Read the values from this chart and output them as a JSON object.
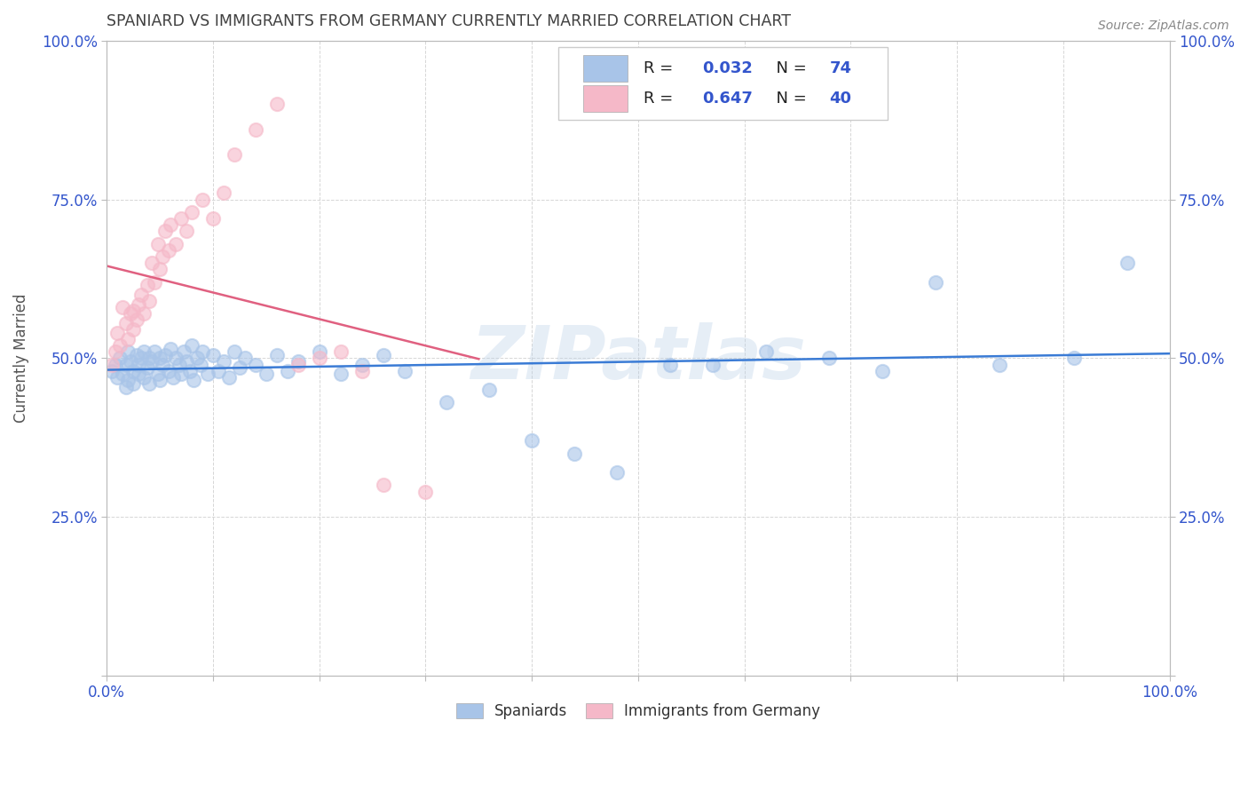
{
  "title": "SPANIARD VS IMMIGRANTS FROM GERMANY CURRENTLY MARRIED CORRELATION CHART",
  "source_text": "Source: ZipAtlas.com",
  "ylabel": "Currently Married",
  "watermark": "ZIPatlas",
  "xlim": [
    0.0,
    1.0
  ],
  "ylim": [
    0.0,
    1.0
  ],
  "xticks": [
    0.0,
    0.1,
    0.2,
    0.3,
    0.4,
    0.5,
    0.6,
    0.7,
    0.8,
    0.9,
    1.0
  ],
  "xticklabels": [
    "0.0%",
    "",
    "",
    "",
    "",
    "",
    "",
    "",
    "",
    "",
    "100.0%"
  ],
  "yticks": [
    0.0,
    0.25,
    0.5,
    0.75,
    1.0
  ],
  "yticklabels": [
    "",
    "25.0%",
    "50.0%",
    "75.0%",
    "100.0%"
  ],
  "blue_R": 0.032,
  "blue_N": 74,
  "pink_R": 0.647,
  "pink_N": 40,
  "blue_color": "#a8c4e8",
  "pink_color": "#f5b8c8",
  "blue_line_color": "#3a7bd5",
  "pink_line_color": "#e06080",
  "legend_R_color": "#3355cc",
  "background_color": "#ffffff",
  "grid_color": "#cccccc",
  "title_color": "#404040",
  "axis_label_color": "#555555",
  "tick_label_color": "#3355cc",
  "blue_scatter_x": [
    0.005,
    0.008,
    0.01,
    0.012,
    0.015,
    0.018,
    0.018,
    0.02,
    0.02,
    0.022,
    0.025,
    0.025,
    0.028,
    0.03,
    0.03,
    0.032,
    0.035,
    0.035,
    0.038,
    0.04,
    0.04,
    0.042,
    0.045,
    0.048,
    0.05,
    0.05,
    0.052,
    0.055,
    0.058,
    0.06,
    0.062,
    0.065,
    0.068,
    0.07,
    0.072,
    0.075,
    0.078,
    0.08,
    0.082,
    0.085,
    0.088,
    0.09,
    0.095,
    0.1,
    0.105,
    0.11,
    0.115,
    0.12,
    0.125,
    0.13,
    0.14,
    0.15,
    0.16,
    0.17,
    0.18,
    0.2,
    0.22,
    0.24,
    0.26,
    0.28,
    0.32,
    0.36,
    0.4,
    0.44,
    0.48,
    0.53,
    0.57,
    0.62,
    0.68,
    0.73,
    0.78,
    0.84,
    0.91,
    0.96
  ],
  "blue_scatter_y": [
    0.48,
    0.49,
    0.47,
    0.5,
    0.475,
    0.49,
    0.455,
    0.51,
    0.465,
    0.495,
    0.48,
    0.46,
    0.505,
    0.475,
    0.49,
    0.5,
    0.47,
    0.51,
    0.485,
    0.5,
    0.46,
    0.495,
    0.51,
    0.475,
    0.5,
    0.465,
    0.49,
    0.505,
    0.48,
    0.515,
    0.47,
    0.5,
    0.49,
    0.475,
    0.51,
    0.495,
    0.48,
    0.52,
    0.465,
    0.5,
    0.49,
    0.51,
    0.475,
    0.505,
    0.48,
    0.495,
    0.47,
    0.51,
    0.485,
    0.5,
    0.49,
    0.475,
    0.505,
    0.48,
    0.495,
    0.51,
    0.475,
    0.49,
    0.505,
    0.48,
    0.43,
    0.45,
    0.37,
    0.35,
    0.32,
    0.49,
    0.49,
    0.51,
    0.5,
    0.48,
    0.62,
    0.49,
    0.5,
    0.65
  ],
  "pink_scatter_x": [
    0.005,
    0.008,
    0.01,
    0.012,
    0.015,
    0.018,
    0.02,
    0.022,
    0.025,
    0.025,
    0.028,
    0.03,
    0.032,
    0.035,
    0.038,
    0.04,
    0.042,
    0.045,
    0.048,
    0.05,
    0.052,
    0.055,
    0.058,
    0.06,
    0.065,
    0.07,
    0.075,
    0.08,
    0.09,
    0.1,
    0.11,
    0.12,
    0.14,
    0.16,
    0.18,
    0.2,
    0.22,
    0.24,
    0.26,
    0.3
  ],
  "pink_scatter_y": [
    0.49,
    0.51,
    0.54,
    0.52,
    0.58,
    0.555,
    0.53,
    0.57,
    0.545,
    0.575,
    0.56,
    0.585,
    0.6,
    0.57,
    0.615,
    0.59,
    0.65,
    0.62,
    0.68,
    0.64,
    0.66,
    0.7,
    0.67,
    0.71,
    0.68,
    0.72,
    0.7,
    0.73,
    0.75,
    0.72,
    0.76,
    0.82,
    0.86,
    0.9,
    0.49,
    0.5,
    0.51,
    0.48,
    0.3,
    0.29
  ]
}
